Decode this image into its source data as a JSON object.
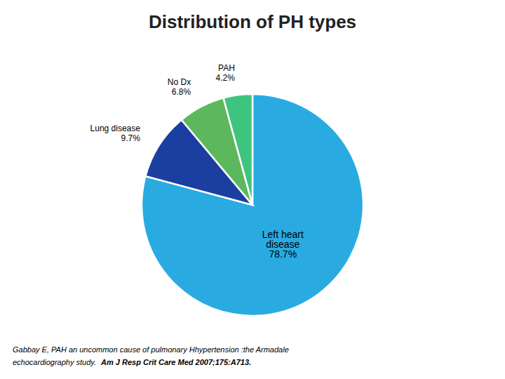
{
  "chart_data": {
    "type": "pie",
    "title": "Distribution of PH types",
    "categories": [
      "Left heart\ndisease",
      "Lung disease",
      "No Dx",
      "PAH"
    ],
    "values": [
      78.7,
      9.7,
      6.8,
      4.2
    ],
    "value_labels": [
      "78.7%",
      "9.7%",
      "6.8%",
      "4.2%"
    ],
    "colors": [
      "#29abe2",
      "#1a3fa0",
      "#5db85d",
      "#3dc47e"
    ],
    "data_labels": true,
    "annotations": [
      "Gabbay E, PAH an uncommon cause of pulmonary Hhypertension :the Armadale",
      "echocardiography study. ",
      "Am J Resp Crit Care Med 2007;175:A713."
    ]
  }
}
